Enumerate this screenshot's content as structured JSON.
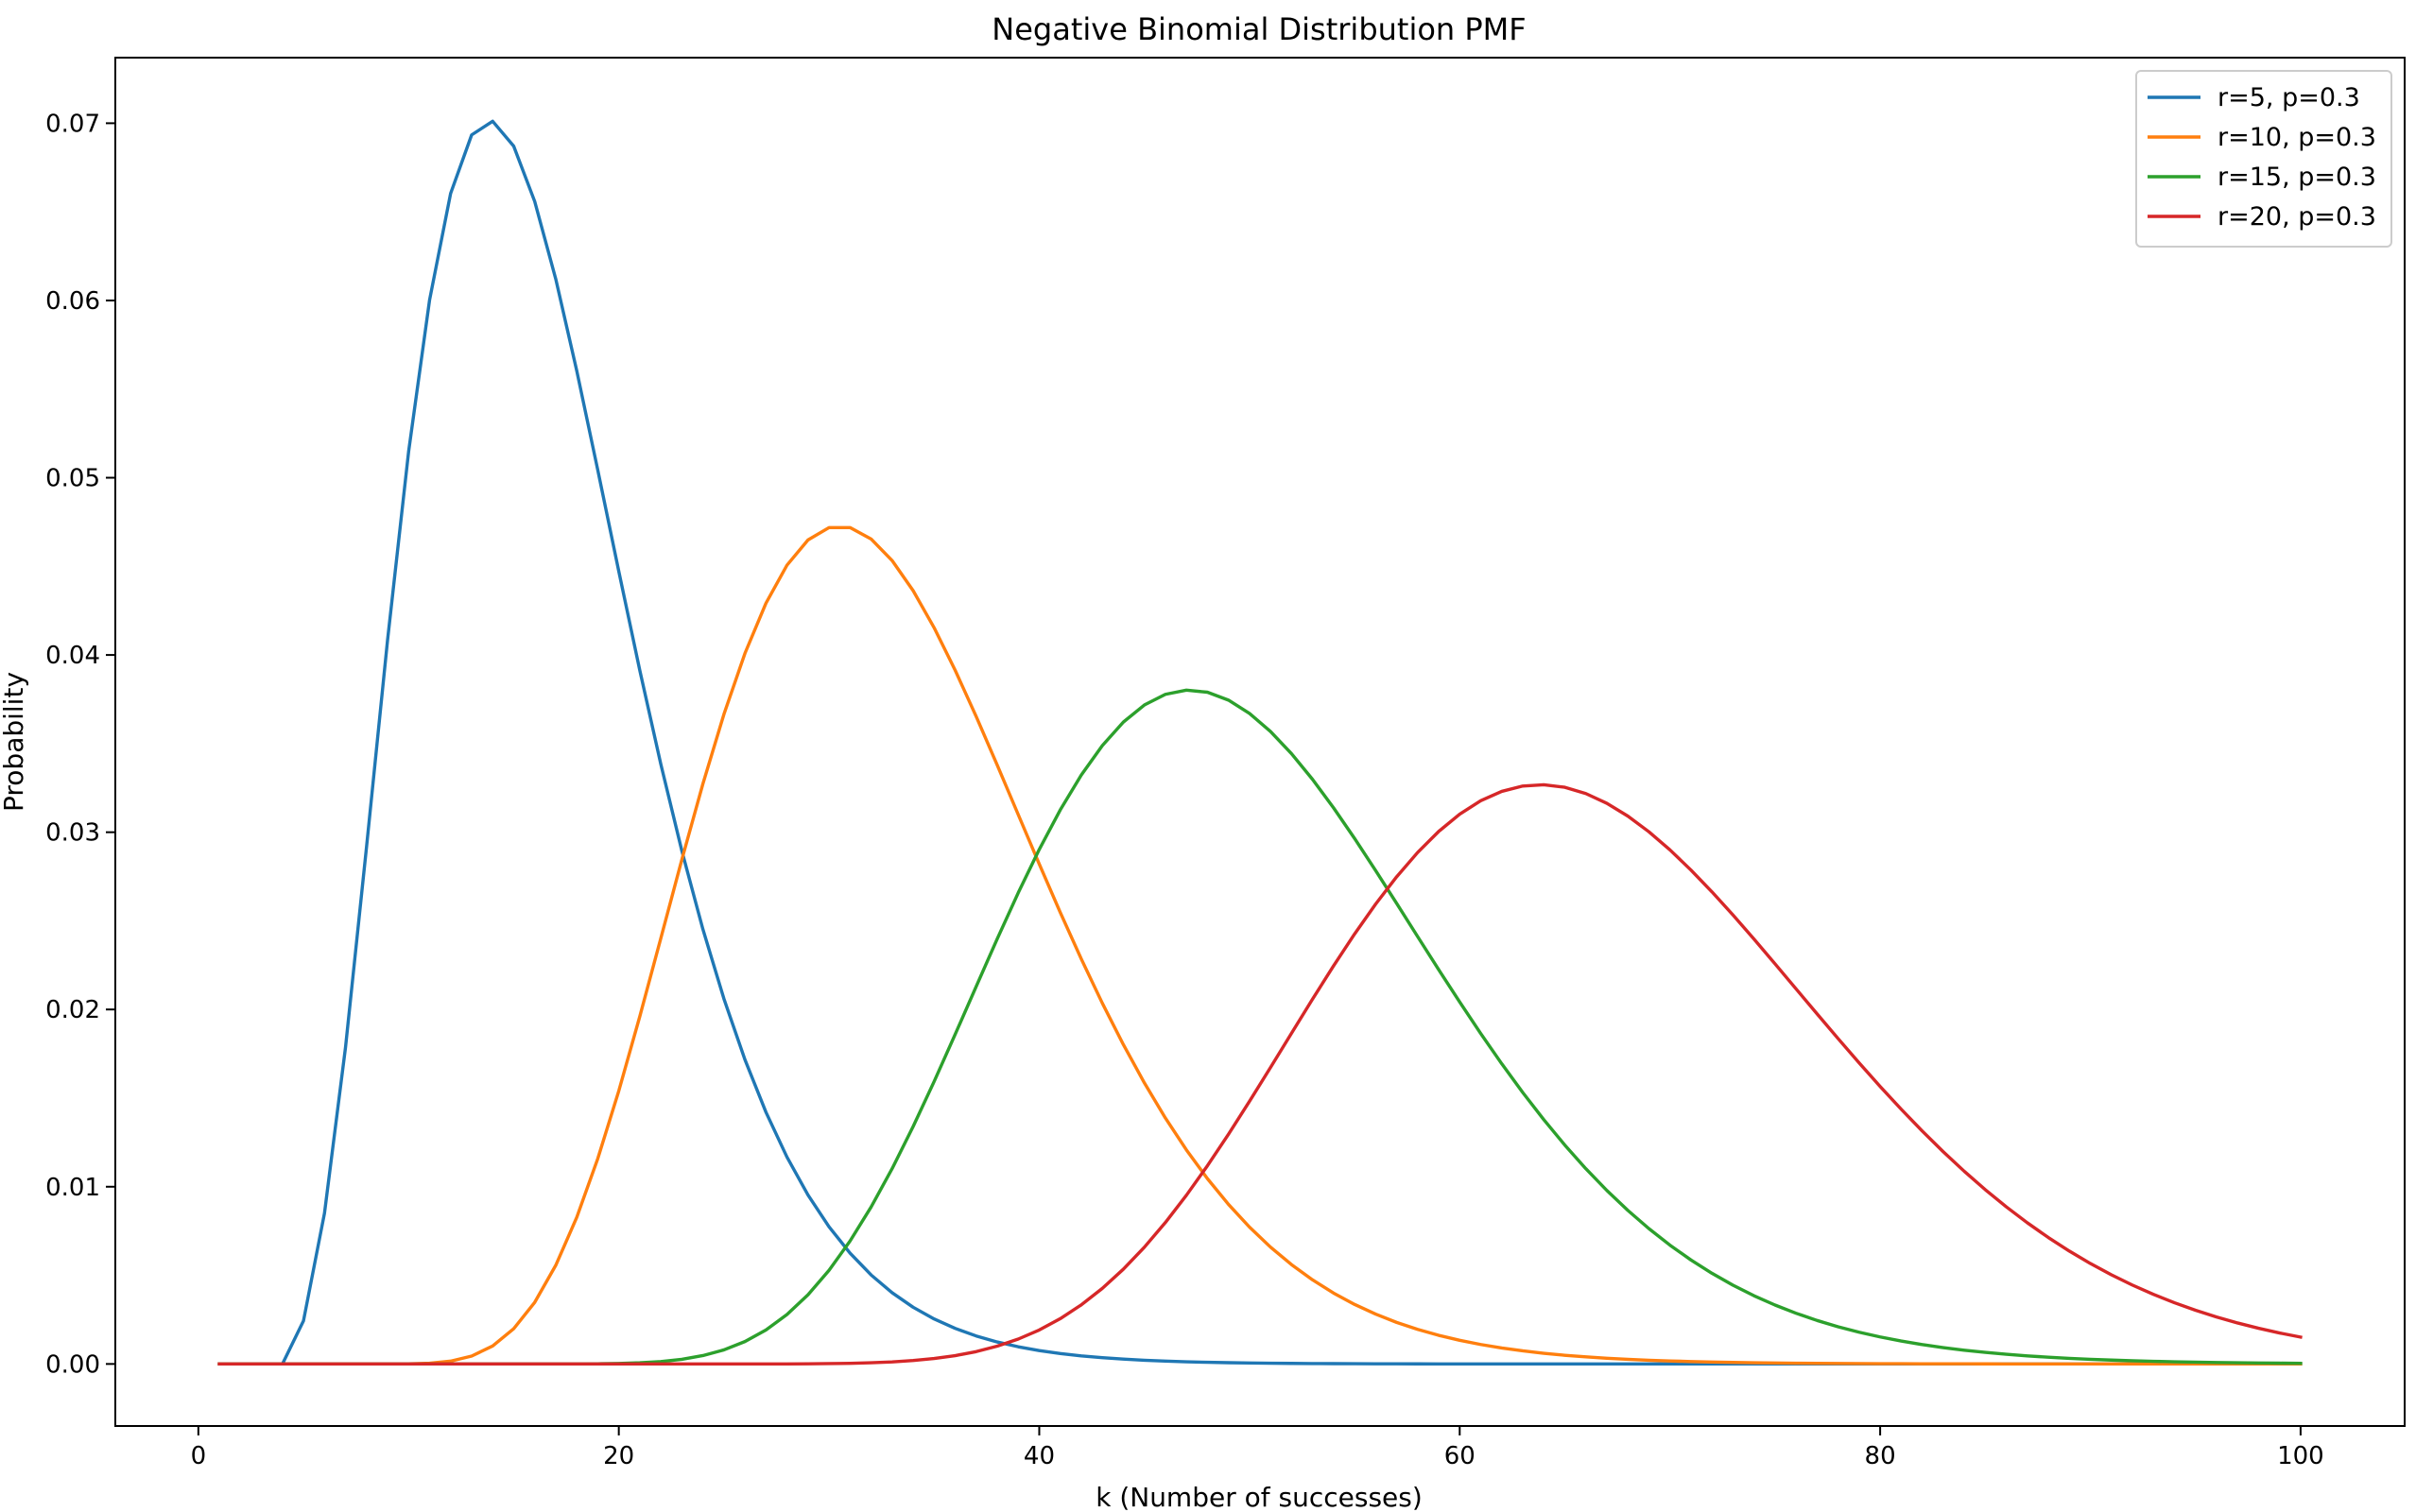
{
  "chart_data": {
    "type": "line",
    "title": "Negative Binomial Distribution PMF",
    "xlabel": "k (Number of successes)",
    "ylabel": "Probability",
    "xlim": [
      -3.95,
      104.95
    ],
    "ylim": [
      -0.0035,
      0.0737
    ],
    "xticks": [
      0,
      20,
      40,
      60,
      80,
      100
    ],
    "yticks": [
      0.0,
      0.01,
      0.02,
      0.03,
      0.04,
      0.05,
      0.06,
      0.07
    ],
    "ytick_labels": [
      "0.00",
      "0.01",
      "0.02",
      "0.03",
      "0.04",
      "0.05",
      "0.06",
      "0.07"
    ],
    "grid": false,
    "legend_position": "top-right",
    "k_range": [
      1,
      100
    ],
    "series": [
      {
        "name": "r=5, p=0.3",
        "r": 5,
        "p": 0.3,
        "color": "#1f77b4"
      },
      {
        "name": "r=10, p=0.3",
        "r": 10,
        "p": 0.3,
        "color": "#ff7f0e"
      },
      {
        "name": "r=15, p=0.3",
        "r": 15,
        "p": 0.3,
        "color": "#2ca02c"
      },
      {
        "name": "r=20, p=0.3",
        "r": 20,
        "p": 0.3,
        "color": "#d62728"
      }
    ]
  }
}
